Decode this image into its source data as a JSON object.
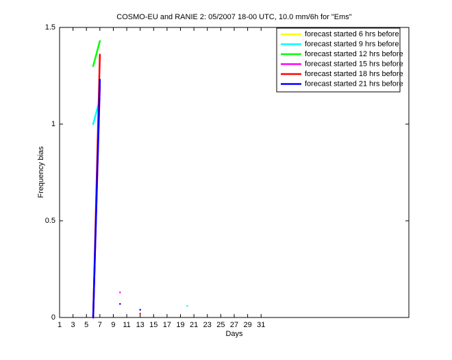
{
  "chart_data": {
    "type": "line",
    "title": "COSMO-EU and RANIE 2: 05/2007 18-00 UTC, 10.0 mm/6h for \"Ems\"",
    "x_label": "Days",
    "y_label": "Frequency bias",
    "x": [
      1,
      2,
      3,
      4,
      5,
      6,
      7,
      8,
      9,
      10,
      11,
      12,
      13,
      14,
      15,
      16,
      17,
      18,
      19,
      20,
      21,
      22,
      23,
      24,
      25,
      26,
      27,
      28,
      29,
      30,
      31
    ],
    "series": [
      {
        "name": "forecast started 6 hrs before",
        "color": "#ffff00",
        "values": [
          null,
          null,
          null,
          null,
          null,
          0,
          1.22,
          null,
          null,
          null,
          null,
          null,
          null,
          null,
          null,
          null,
          null,
          null,
          null,
          null,
          null,
          null,
          null,
          null,
          null,
          null,
          null,
          null,
          null,
          null,
          null
        ]
      },
      {
        "name": "forecast started 9 hrs before",
        "color": "#00ffff",
        "values": [
          null,
          null,
          null,
          null,
          null,
          1.0,
          1.13,
          null,
          null,
          null,
          null,
          null,
          null,
          null,
          null,
          null,
          null,
          null,
          null,
          0.06,
          null,
          null,
          null,
          null,
          null,
          null,
          null,
          null,
          null,
          null,
          null
        ]
      },
      {
        "name": "forecast started 12 hrs before",
        "color": "#00ff00",
        "values": [
          null,
          null,
          null,
          null,
          null,
          1.3,
          1.43,
          null,
          null,
          null,
          null,
          null,
          null,
          null,
          null,
          null,
          null,
          null,
          null,
          null,
          null,
          null,
          null,
          null,
          null,
          null,
          null,
          null,
          null,
          null,
          null
        ]
      },
      {
        "name": "forecast started 15 hrs before",
        "color": "#ff00ff",
        "values": [
          null,
          null,
          null,
          null,
          null,
          0,
          1.2,
          null,
          null,
          0.13,
          null,
          null,
          null,
          null,
          null,
          null,
          null,
          null,
          null,
          null,
          null,
          null,
          null,
          null,
          null,
          null,
          null,
          null,
          null,
          null,
          null
        ]
      },
      {
        "name": "forecast started 18 hrs before",
        "color": "#ff0000",
        "values": [
          null,
          null,
          null,
          null,
          null,
          0,
          1.36,
          null,
          null,
          null,
          null,
          null,
          0.02,
          null,
          null,
          null,
          null,
          null,
          null,
          null,
          null,
          null,
          null,
          null,
          null,
          null,
          null,
          null,
          null,
          null,
          null
        ]
      },
      {
        "name": "forecast started 21 hrs before",
        "color": "#0000ff",
        "values": [
          null,
          null,
          null,
          null,
          null,
          0,
          1.23,
          null,
          null,
          0.07,
          null,
          null,
          0.04,
          null,
          null,
          null,
          null,
          null,
          null,
          null,
          null,
          null,
          null,
          null,
          null,
          null,
          null,
          null,
          null,
          null,
          null
        ]
      }
    ],
    "xlim": [
      1,
      53
    ],
    "xticks": [
      1,
      3,
      5,
      7,
      9,
      11,
      13,
      15,
      17,
      19,
      21,
      23,
      25,
      27,
      29,
      31
    ],
    "ylim": [
      0,
      1.5
    ],
    "yticks": [
      0,
      0.5,
      1,
      1.5
    ],
    "legend": "upper right"
  }
}
